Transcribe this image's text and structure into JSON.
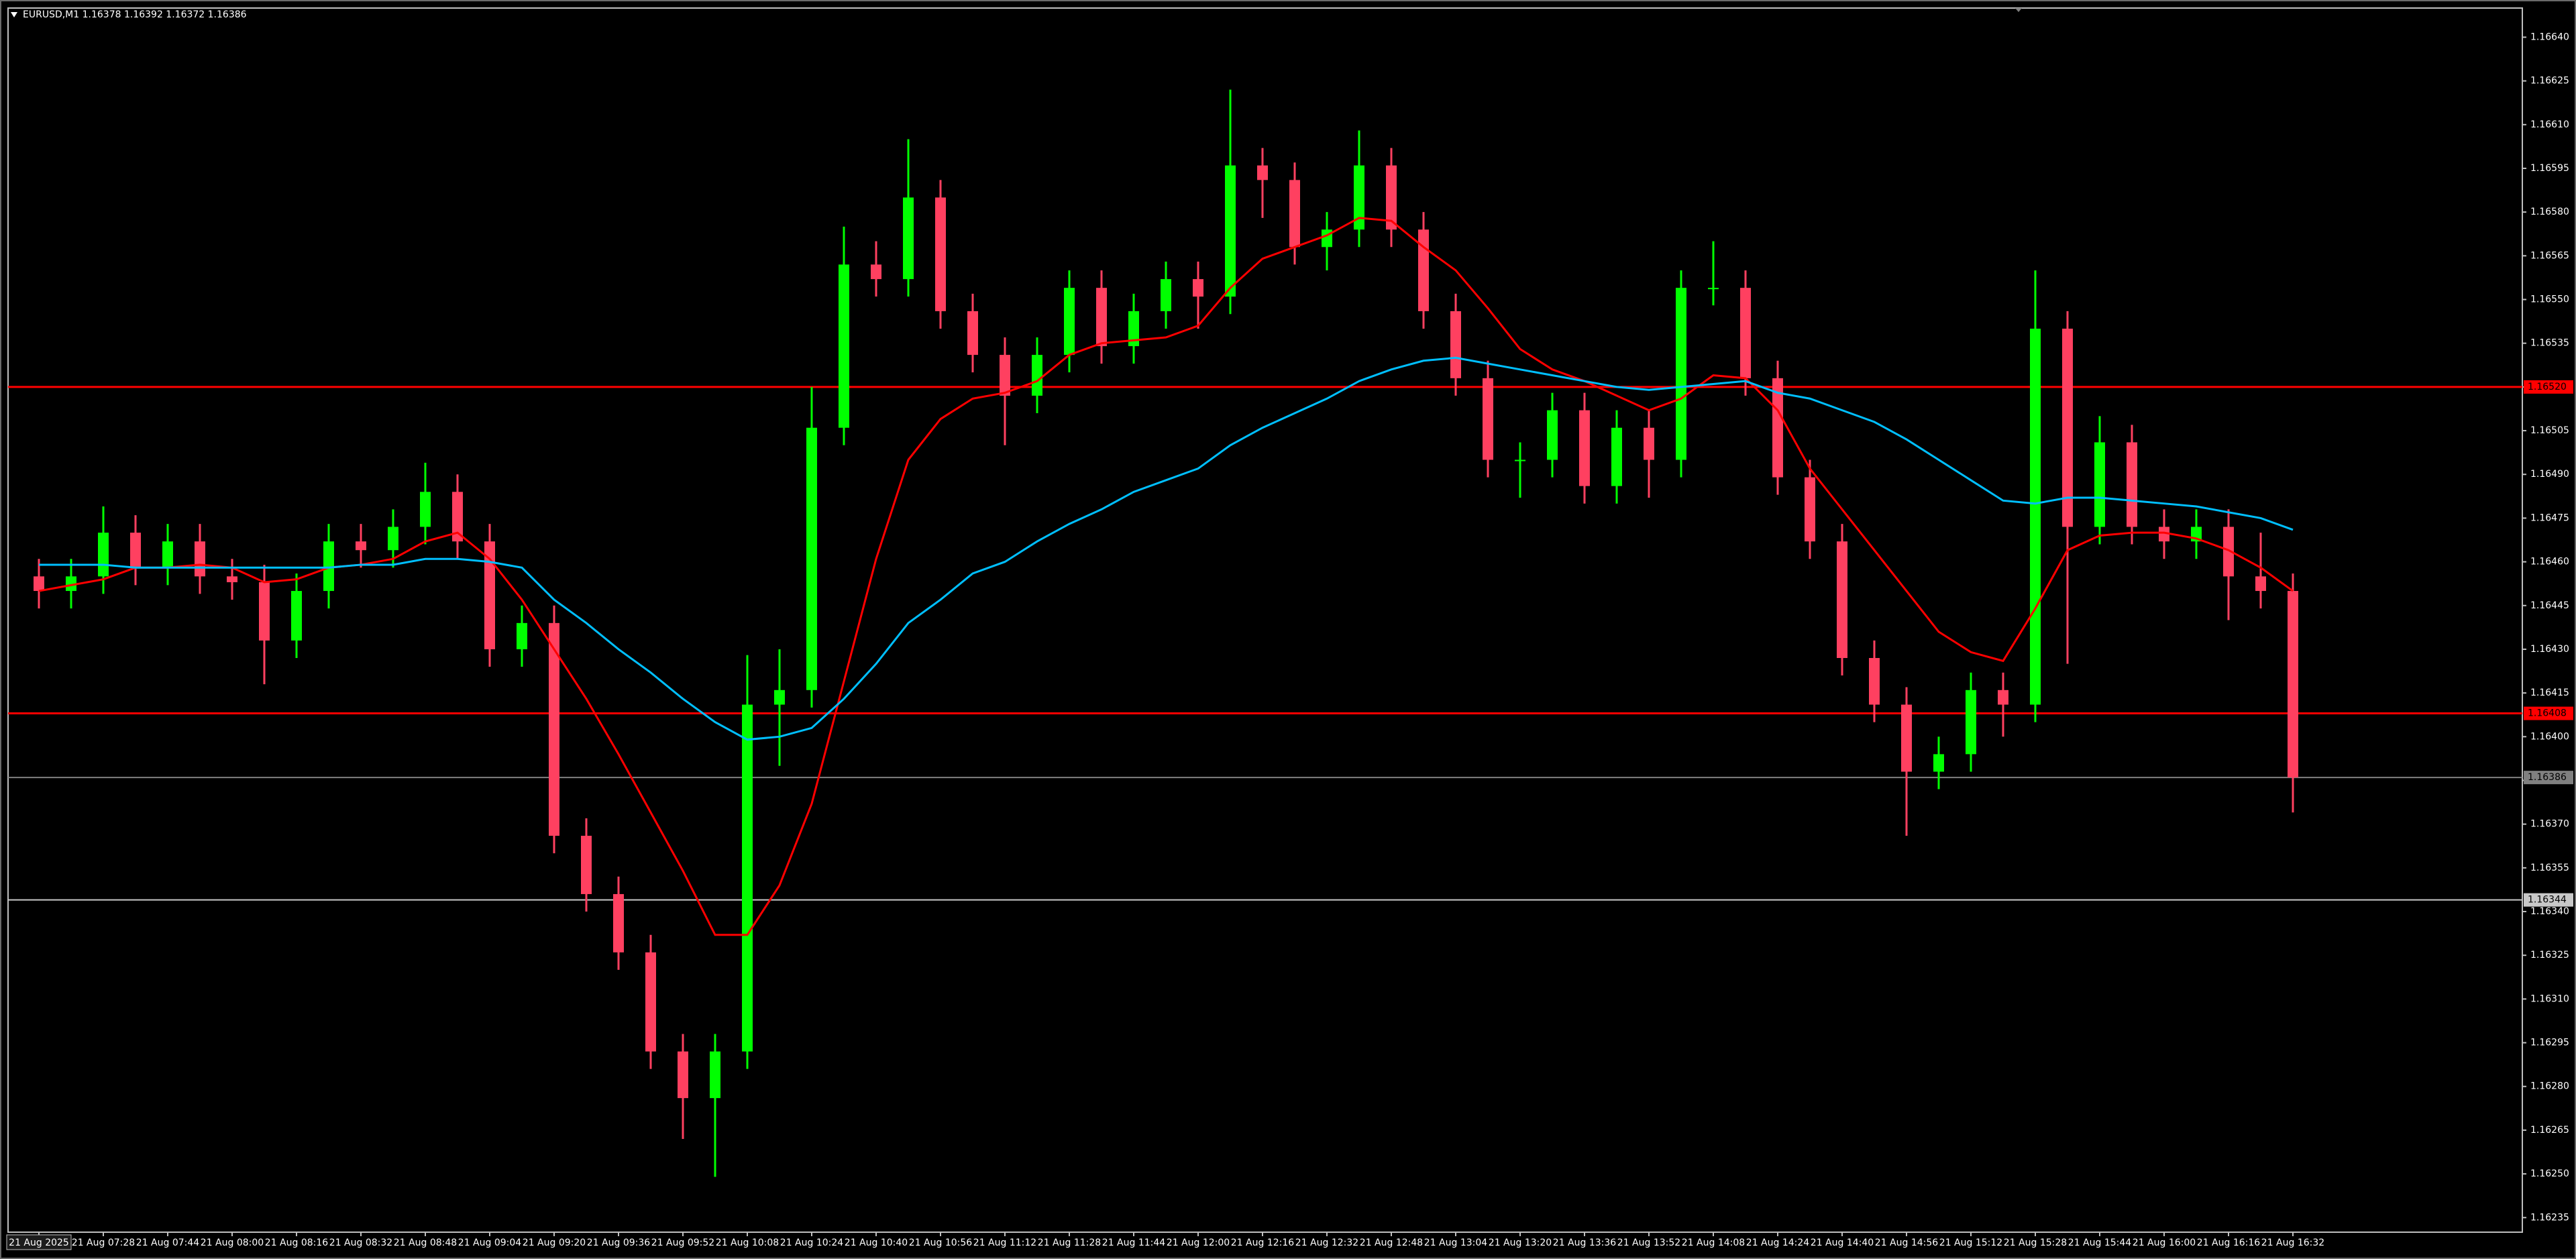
{
  "chart_data": {
    "type": "candlestick",
    "title": "EURUSD,M1  1.16378 1.16392 1.16372 1.16386",
    "categories": [
      "21 Aug 2025",
      null,
      "21 Aug 07:28",
      null,
      "21 Aug 07:44",
      null,
      "21 Aug 08:00",
      null,
      "21 Aug 08:16",
      null,
      "21 Aug 08:32",
      null,
      "21 Aug 08:48",
      null,
      "21 Aug 09:04",
      null,
      "21 Aug 09:20",
      null,
      "21 Aug 09:36",
      null,
      "21 Aug 09:52",
      null,
      "21 Aug 10:08",
      null,
      "21 Aug 10:24",
      null,
      "21 Aug 10:40",
      null,
      "21 Aug 10:56",
      null,
      "21 Aug 11:12",
      null,
      "21 Aug 11:28",
      null,
      "21 Aug 11:44",
      null,
      "21 Aug 12:00",
      null,
      "21 Aug 12:16",
      null,
      "21 Aug 12:32",
      null,
      "21 Aug 12:48",
      null,
      "21 Aug 13:04",
      null,
      "21 Aug 13:20",
      null,
      "21 Aug 13:36",
      null,
      "21 Aug 13:52",
      null,
      "21 Aug 14:08",
      null,
      "21 Aug 14:24",
      null,
      "21 Aug 14:40",
      null,
      "21 Aug 14:56",
      null,
      "21 Aug 15:12",
      null,
      "21 Aug 15:28",
      null,
      "21 Aug 15:44",
      null,
      "21 Aug 16:00",
      null,
      "21 Aug 16:16",
      null,
      "21 Aug 16:32"
    ],
    "open": [
      1.16455,
      1.1645,
      1.16455,
      1.1647,
      1.16458,
      1.16467,
      1.16455,
      1.16453,
      1.16433,
      1.1645,
      1.16467,
      1.16464,
      1.16472,
      1.16484,
      1.16467,
      1.1643,
      1.16439,
      1.16366,
      1.16346,
      1.16326,
      1.16292,
      1.16276,
      1.16292,
      1.16411,
      1.16416,
      1.16506,
      1.16562,
      1.16557,
      1.16585,
      1.16546,
      1.16531,
      1.16517,
      1.16531,
      1.16554,
      1.16534,
      1.16546,
      1.16557,
      1.16551,
      1.16596,
      1.16591,
      1.16568,
      1.16574,
      1.16596,
      1.16574,
      1.16546,
      1.16523,
      1.16495,
      1.16495,
      1.16512,
      1.16486,
      1.16506,
      1.16495,
      1.16554,
      1.16554,
      1.16523,
      1.16489,
      1.16467,
      1.16427,
      1.16411,
      1.16388,
      1.16394,
      1.16416,
      1.16411,
      1.1654,
      1.16472,
      1.16501,
      1.16472,
      1.16467,
      1.16472,
      1.16455,
      1.1645
    ],
    "high": [
      1.16461,
      1.16461,
      1.16479,
      1.16476,
      1.16473,
      1.16473,
      1.16461,
      1.16459,
      1.16456,
      1.16473,
      1.16473,
      1.16478,
      1.16494,
      1.1649,
      1.16473,
      1.16445,
      1.16445,
      1.16372,
      1.16352,
      1.16332,
      1.16298,
      1.16298,
      1.16428,
      1.1643,
      1.1652,
      1.16575,
      1.1657,
      1.16605,
      1.16591,
      1.16552,
      1.16537,
      1.16537,
      1.1656,
      1.1656,
      1.16552,
      1.16563,
      1.16563,
      1.16622,
      1.16602,
      1.16597,
      1.1658,
      1.16608,
      1.16602,
      1.1658,
      1.16552,
      1.16529,
      1.16501,
      1.16518,
      1.16518,
      1.16512,
      1.16512,
      1.1656,
      1.1657,
      1.1656,
      1.16529,
      1.16495,
      1.16473,
      1.16433,
      1.16417,
      1.164,
      1.16422,
      1.16422,
      1.1656,
      1.16546,
      1.1651,
      1.16507,
      1.16478,
      1.16478,
      1.16478,
      1.1647,
      1.16456
    ],
    "low": [
      1.16444,
      1.16444,
      1.16449,
      1.16452,
      1.16452,
      1.16449,
      1.16447,
      1.16418,
      1.16427,
      1.16444,
      1.16458,
      1.16458,
      1.16466,
      1.16461,
      1.16424,
      1.16424,
      1.1636,
      1.1634,
      1.1632,
      1.16286,
      1.16262,
      1.16249,
      1.16286,
      1.1639,
      1.1641,
      1.165,
      1.16551,
      1.16551,
      1.1654,
      1.16525,
      1.165,
      1.16511,
      1.16525,
      1.16528,
      1.16528,
      1.1654,
      1.1654,
      1.16545,
      1.16578,
      1.16562,
      1.1656,
      1.16568,
      1.16568,
      1.1654,
      1.16517,
      1.16489,
      1.16482,
      1.16489,
      1.1648,
      1.1648,
      1.16482,
      1.16489,
      1.16548,
      1.16517,
      1.16483,
      1.16461,
      1.16421,
      1.16405,
      1.16366,
      1.16382,
      1.16388,
      1.164,
      1.16405,
      1.16425,
      1.16466,
      1.16466,
      1.16461,
      1.16461,
      1.1644,
      1.16444,
      1.16374
    ],
    "close": [
      1.1645,
      1.16455,
      1.1647,
      1.16458,
      1.16467,
      1.16455,
      1.16453,
      1.16433,
      1.1645,
      1.16467,
      1.16464,
      1.16472,
      1.16484,
      1.16467,
      1.1643,
      1.16439,
      1.16366,
      1.16346,
      1.16326,
      1.16292,
      1.16276,
      1.16292,
      1.16411,
      1.16416,
      1.16506,
      1.16562,
      1.16557,
      1.16585,
      1.16546,
      1.16531,
      1.16517,
      1.16531,
      1.16554,
      1.16534,
      1.16546,
      1.16557,
      1.16551,
      1.16596,
      1.16591,
      1.16568,
      1.16574,
      1.16596,
      1.16574,
      1.16546,
      1.16523,
      1.16495,
      1.16495,
      1.16512,
      1.16486,
      1.16506,
      1.16495,
      1.16554,
      1.16554,
      1.16523,
      1.16489,
      1.16467,
      1.16427,
      1.16411,
      1.16388,
      1.16394,
      1.16416,
      1.16411,
      1.1654,
      1.16472,
      1.16501,
      1.16472,
      1.16467,
      1.16472,
      1.16455,
      1.1645,
      1.16386
    ],
    "up_color": "#00ff00",
    "down_color": "#ff4060",
    "series": [
      {
        "color": "#ff0000",
        "values": [
          1.1645,
          1.16452,
          1.16454,
          1.16458,
          1.16458,
          1.16459,
          1.16458,
          1.16453,
          1.16454,
          1.16458,
          1.16459,
          1.16461,
          1.16467,
          1.1647,
          1.16461,
          1.16447,
          1.1643,
          1.16413,
          1.16394,
          1.16374,
          1.16354,
          1.16332,
          1.16332,
          1.16349,
          1.16377,
          1.16419,
          1.16461,
          1.16495,
          1.16509,
          1.16516,
          1.16518,
          1.16522,
          1.16531,
          1.16535,
          1.16536,
          1.16537,
          1.16541,
          1.16554,
          1.16564,
          1.16568,
          1.16572,
          1.16578,
          1.16577,
          1.16568,
          1.1656,
          1.16547,
          1.16533,
          1.16526,
          1.16522,
          1.16517,
          1.16512,
          1.16516,
          1.16524,
          1.16523,
          1.16512,
          1.16492,
          1.16478,
          1.16464,
          1.1645,
          1.16436,
          1.16429,
          1.16426,
          1.16444,
          1.16464,
          1.16469,
          1.1647,
          1.1647,
          1.16468,
          1.16464,
          1.16458,
          1.1645
        ]
      },
      {
        "color": "#00bfff",
        "values": [
          1.16459,
          1.16459,
          1.16459,
          1.16458,
          1.16458,
          1.16458,
          1.16458,
          1.16458,
          1.16458,
          1.16458,
          1.16459,
          1.16459,
          1.16461,
          1.16461,
          1.1646,
          1.16458,
          1.16447,
          1.16439,
          1.1643,
          1.16422,
          1.16413,
          1.16405,
          1.16399,
          1.164,
          1.16403,
          1.16413,
          1.16425,
          1.16439,
          1.16447,
          1.16456,
          1.1646,
          1.16467,
          1.16473,
          1.16478,
          1.16484,
          1.16488,
          1.16492,
          1.165,
          1.16506,
          1.16511,
          1.16516,
          1.16522,
          1.16526,
          1.16529,
          1.1653,
          1.16528,
          1.16526,
          1.16524,
          1.16522,
          1.1652,
          1.16519,
          1.1652,
          1.16521,
          1.16522,
          1.16518,
          1.16516,
          1.16512,
          1.16508,
          1.16502,
          1.16495,
          1.16488,
          1.16481,
          1.1648,
          1.16482,
          1.16482,
          1.16481,
          1.1648,
          1.16479,
          1.16477,
          1.16475,
          1.16471
        ]
      }
    ],
    "hlines": [
      {
        "value": 1.1652,
        "label": "1.16520",
        "color": "#ff0000"
      },
      {
        "value": 1.16408,
        "label": "1.16408",
        "color": "#ff0000"
      },
      {
        "value": 1.16386,
        "label": "1.16386",
        "color": "#808080"
      },
      {
        "value": 1.16344,
        "label": "1.16344",
        "color": "#c8c8c8"
      }
    ],
    "ylim": [
      1.1623,
      1.1665
    ],
    "yticks": [
      {
        "value": 1.1664,
        "label": "1.16640"
      },
      1.16625,
      {
        "value": 1.1661,
        "label": "1.16610"
      },
      1.16595,
      {
        "value": 1.1658,
        "label": "1.16580"
      },
      1.16565,
      {
        "value": 1.1655,
        "label": "1.16550"
      },
      1.16535,
      {
        "value": 1.1652,
        "label": "1.16520"
      },
      1.16505,
      {
        "value": 1.1649,
        "label": "1.16490"
      },
      1.16475,
      {
        "value": 1.1646,
        "label": "1.16460"
      },
      1.16445,
      {
        "value": 1.1643,
        "label": "1.16430"
      },
      1.16415,
      {
        "value": 1.164,
        "label": "1.16400"
      },
      1.16385,
      {
        "value": 1.1637,
        "label": "1.16370"
      },
      1.16355,
      {
        "value": 1.1634,
        "label": "1.16340"
      },
      1.16325,
      {
        "value": 1.1631,
        "label": "1.16310"
      },
      1.16295,
      {
        "value": 1.1628,
        "label": "1.16280"
      },
      1.16265,
      {
        "value": 1.1625,
        "label": "1.16250"
      },
      1.16235
    ],
    "grid": false
  }
}
